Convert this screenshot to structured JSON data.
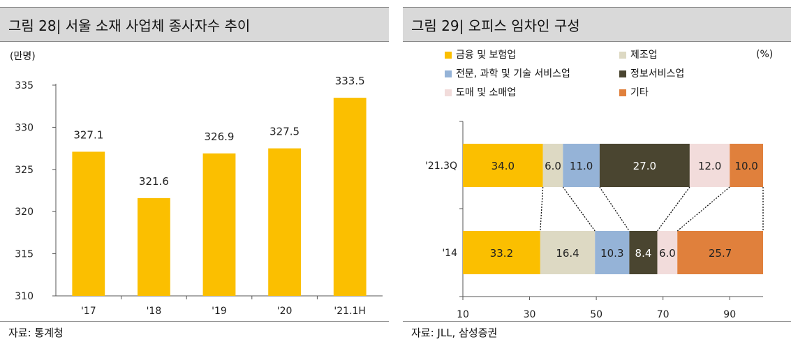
{
  "left": {
    "title": "그림 28| 서울 소재 사업체 종사자수 추이",
    "unit": "(만명)",
    "source": "자료: 통계청",
    "chart_data": {
      "type": "bar",
      "categories": [
        "'17",
        "'18",
        "'19",
        "'20",
        "'21.1H"
      ],
      "values": [
        327.1,
        321.6,
        326.9,
        327.5,
        333.5
      ],
      "value_labels": [
        "327.1",
        "321.6",
        "326.9",
        "327.5",
        "333.5"
      ],
      "ylim": [
        310,
        335
      ],
      "yticks": [
        "310",
        "315",
        "320",
        "325",
        "330",
        "335"
      ],
      "color": "#fbbf00"
    }
  },
  "right": {
    "title": "그림 29| 오피스 임차인 구성",
    "unit": "(%)",
    "source": "자료: JLL, 삼성증권",
    "chart_data": {
      "type": "bar",
      "orientation": "horizontal",
      "stacked": true,
      "categories": [
        "'21.3Q",
        "'14"
      ],
      "series": [
        {
          "name": "금융 및 보험업",
          "color": "#fbbf00",
          "values": [
            34.0,
            33.2
          ],
          "labels": [
            "34.0",
            "33.2"
          ]
        },
        {
          "name": "제조업",
          "color": "#ddd9c3",
          "values": [
            6.0,
            16.4
          ],
          "labels": [
            "6.0",
            "16.4"
          ]
        },
        {
          "name": "전문, 과학 및 기술 서비스업",
          "color": "#95b3d7",
          "values": [
            11.0,
            10.3
          ],
          "labels": [
            "11.0",
            "10.3"
          ]
        },
        {
          "name": "정보서비스업",
          "color": "#4a4530",
          "values": [
            27.0,
            8.4
          ],
          "labels": [
            "27.0",
            "8.4"
          ]
        },
        {
          "name": "도매 및 소매업",
          "color": "#f2dcdb",
          "values": [
            12.0,
            6.0
          ],
          "labels": [
            "12.0",
            "6.0"
          ]
        },
        {
          "name": "기타",
          "color": "#e0803c",
          "values": [
            10.0,
            25.7
          ],
          "labels": [
            "10.0",
            "25.7"
          ]
        }
      ],
      "xlim": [
        10,
        100
      ],
      "xticks": [
        "10",
        "30",
        "50",
        "70",
        "90"
      ],
      "legend_position": "top"
    }
  }
}
